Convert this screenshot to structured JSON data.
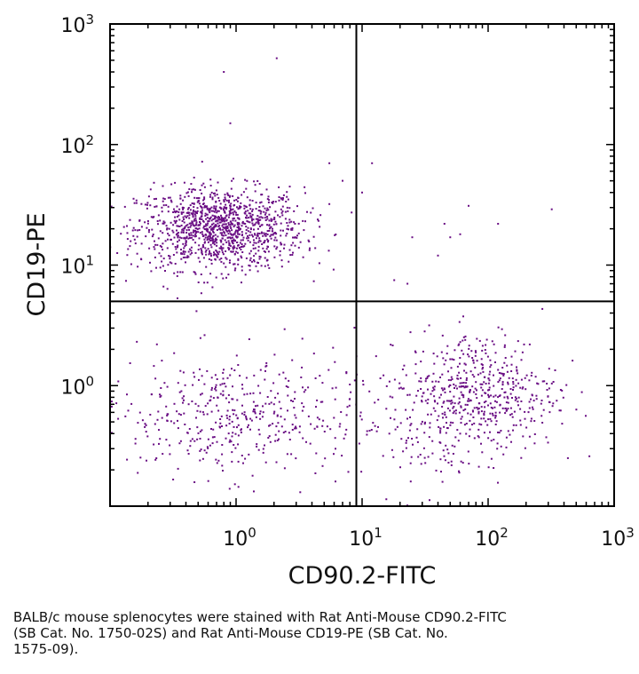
{
  "chart_data": {
    "type": "scatter",
    "plot_kind": "flow cytometry dot plot with quadrant gates",
    "xlabel": "CD90.2-FITC",
    "ylabel": "CD19-PE",
    "xscale": "log",
    "yscale": "log",
    "xlim": [
      0.1,
      1000
    ],
    "ylim": [
      0.1,
      1000
    ],
    "x_tick_labels": [
      {
        "value": 1,
        "base": "10",
        "exp": "0"
      },
      {
        "value": 10,
        "base": "10",
        "exp": "1"
      },
      {
        "value": 100,
        "base": "10",
        "exp": "2"
      },
      {
        "value": 1000,
        "base": "10",
        "exp": "3"
      }
    ],
    "y_tick_labels": [
      {
        "value": 1,
        "base": "10",
        "exp": "0"
      },
      {
        "value": 10,
        "base": "10",
        "exp": "1"
      },
      {
        "value": 100,
        "base": "10",
        "exp": "2"
      },
      {
        "value": 1000,
        "base": "10",
        "exp": "3"
      }
    ],
    "quadrant_x": 9,
    "quadrant_y": 5,
    "grid": false,
    "point_color": "#6a0e84",
    "populations": [
      {
        "x_center": 0.75,
        "y_center": 20,
        "x_spread_decades": 0.33,
        "y_spread_decades": 0.17,
        "count": 1200
      },
      {
        "x_center": 0.9,
        "y_center": 0.55,
        "x_spread_decades": 0.5,
        "y_spread_decades": 0.25,
        "count": 450
      },
      {
        "x_center": 90,
        "y_center": 0.9,
        "x_spread_decades": 0.3,
        "y_spread_decades": 0.25,
        "count": 480
      },
      {
        "x_center": 30,
        "y_center": 0.5,
        "x_spread_decades": 0.35,
        "y_spread_decades": 0.3,
        "count": 150
      }
    ],
    "outliers": [
      {
        "x": 0.8,
        "y": 400
      },
      {
        "x": 2.1,
        "y": 520
      },
      {
        "x": 0.9,
        "y": 150
      },
      {
        "x": 12,
        "y": 70
      },
      {
        "x": 25,
        "y": 17
      },
      {
        "x": 45,
        "y": 22
      },
      {
        "x": 50,
        "y": 17
      },
      {
        "x": 60,
        "y": 18
      },
      {
        "x": 70,
        "y": 31
      },
      {
        "x": 120,
        "y": 22
      },
      {
        "x": 320,
        "y": 29
      },
      {
        "x": 18,
        "y": 7.5
      },
      {
        "x": 40,
        "y": 12
      },
      {
        "x": 10,
        "y": 40
      },
      {
        "x": 5.5,
        "y": 70
      },
      {
        "x": 7,
        "y": 50
      }
    ]
  },
  "caption": {
    "line1": "BALB/c mouse splenocytes were stained with Rat Anti-Mouse CD90.2-FITC",
    "line2": "(SB Cat. No. 1750-02S) and Rat Anti-Mouse CD19-PE (SB Cat. No.",
    "line3": "1575-09)."
  }
}
